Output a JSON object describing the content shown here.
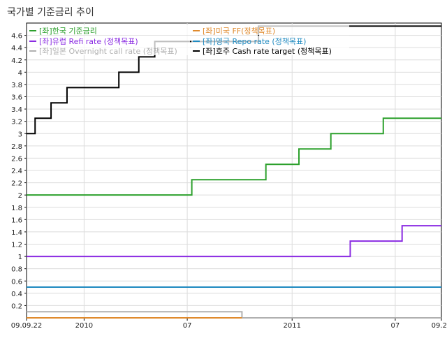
{
  "chart_data": {
    "type": "line",
    "title": "국가별 기준금리 추이",
    "ylim": [
      0,
      4.8
    ],
    "y_ticks": [
      "0.2",
      "0.4",
      "0.6",
      "0.8",
      "1",
      "1.2",
      "1.4",
      "1.6",
      "1.8",
      "2",
      "2.2",
      "2.4",
      "2.6",
      "2.8",
      "3",
      "3.2",
      "3.4",
      "3.6",
      "3.8",
      "4",
      "4.2",
      "4.4",
      "4.6"
    ],
    "x_ticks": [
      "09.09.22",
      "2010",
      "07",
      "2011",
      "07",
      "09.20"
    ],
    "x_tick_dates": [
      "2009-09-22",
      "2010-01-01",
      "2010-07-01",
      "2011-01-01",
      "2011-07-01",
      "2011-09-20"
    ],
    "xlim": [
      "2009-09-22",
      "2011-09-20"
    ],
    "grid": true,
    "legend_position": "top",
    "series": [
      {
        "name": "[좌]한국 기준금리",
        "color": "#2ca02c",
        "points": [
          [
            "2009-09-22",
            2.0
          ],
          [
            "2010-07-09",
            2.25
          ],
          [
            "2010-11-16",
            2.5
          ],
          [
            "2011-01-13",
            2.75
          ],
          [
            "2011-03-10",
            3.0
          ],
          [
            "2011-06-10",
            3.25
          ],
          [
            "2011-09-20",
            3.25
          ]
        ]
      },
      {
        "name": "[좌]유럽 Refi rate (정책목표)",
        "color": "#8a2be2",
        "points": [
          [
            "2009-09-22",
            1.0
          ],
          [
            "2011-04-13",
            1.25
          ],
          [
            "2011-07-13",
            1.5
          ],
          [
            "2011-09-20",
            1.5
          ]
        ]
      },
      {
        "name": "[좌]일본 Overnight call rate (정책목표)",
        "color": "#b0b0b0",
        "points": [
          [
            "2009-09-22",
            0.1
          ],
          [
            "2010-10-05",
            0.1
          ],
          [
            "2010-10-05",
            0.0
          ],
          [
            "2011-09-20",
            0.0
          ]
        ]
      },
      {
        "name": "[좌]미국 FF(정책목표)",
        "color": "#e08a2c",
        "points": [
          [
            "2009-09-22",
            0.0
          ],
          [
            "2010-10-05",
            0.0
          ]
        ]
      },
      {
        "name": "[좌]영국 Repo rate (정책목표)",
        "color": "#1f8ac0",
        "points": [
          [
            "2009-09-22",
            0.5
          ],
          [
            "2011-09-20",
            0.5
          ]
        ]
      },
      {
        "name": "[좌]호주 Cash rate target (정책목표)",
        "color": "#000000",
        "points": [
          [
            "2009-09-22",
            3.0
          ],
          [
            "2009-10-07",
            3.25
          ],
          [
            "2009-11-04",
            3.5
          ],
          [
            "2009-12-02",
            3.75
          ],
          [
            "2010-03-03",
            4.0
          ],
          [
            "2010-04-07",
            4.25
          ],
          [
            "2010-05-05",
            4.5
          ],
          [
            "2010-11-03",
            4.75
          ],
          [
            "2011-09-20",
            4.75
          ]
        ]
      }
    ]
  }
}
